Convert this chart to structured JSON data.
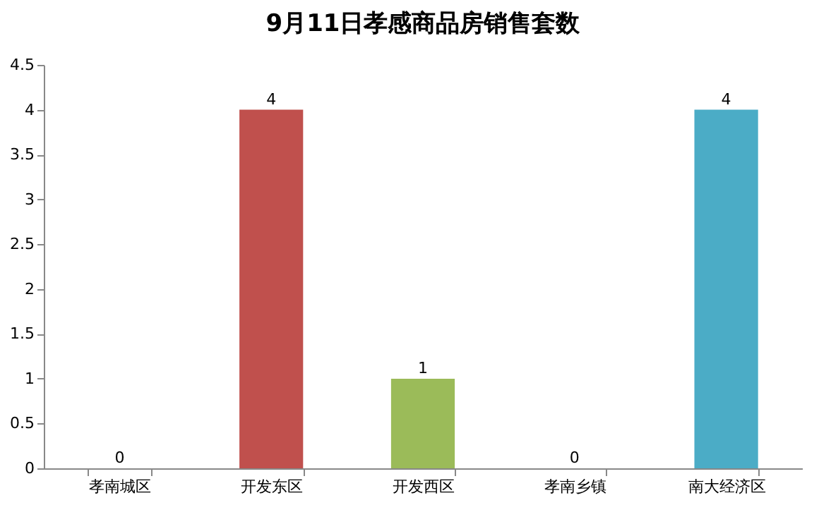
{
  "chart_data": {
    "type": "bar",
    "title": "9月11日孝感商品房销售套数",
    "categories": [
      "孝南城区",
      "开发东区",
      "开发西区",
      "孝南乡镇",
      "南大经济区"
    ],
    "values": [
      0,
      4,
      1,
      0,
      4
    ],
    "colors": [
      "#4f81bd",
      "#c0504d",
      "#9bbb59",
      "#8064a2",
      "#4bacc6"
    ],
    "ylim": [
      0,
      4.5
    ],
    "yticks": [
      0,
      0.5,
      1,
      1.5,
      2,
      2.5,
      3,
      3.5,
      4,
      4.5
    ],
    "data_labels": true,
    "grid": false
  }
}
